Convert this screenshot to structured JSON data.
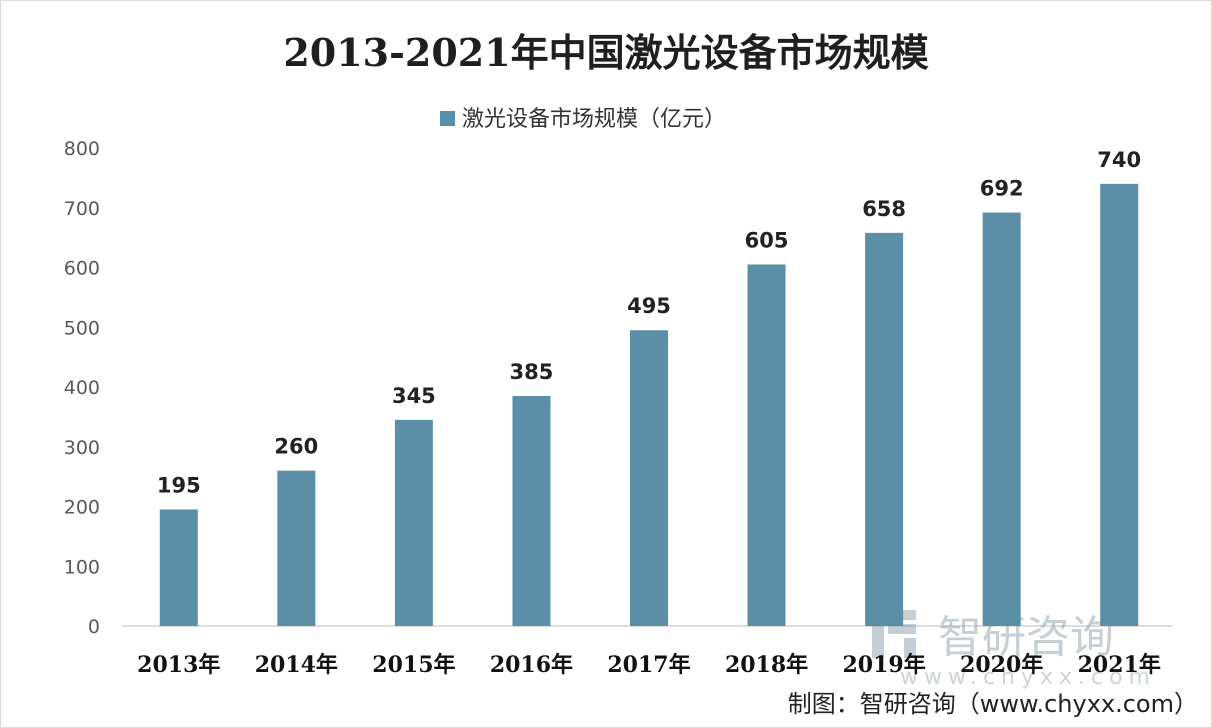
{
  "chart_data": {
    "type": "bar",
    "title": "2013-2021年中国激光设备市场规模",
    "categories": [
      "2013年",
      "2014年",
      "2015年",
      "2016年",
      "2017年",
      "2018年",
      "2019年",
      "2020年",
      "2021年"
    ],
    "series": [
      {
        "name": "激光设备市场规模（亿元）",
        "values": [
          195,
          260,
          345,
          385,
          495,
          605,
          658,
          692,
          740
        ]
      }
    ],
    "yticks": [
      "0",
      "100",
      "200",
      "300",
      "400",
      "500",
      "600",
      "700",
      "800"
    ],
    "ylim": [
      0,
      800
    ],
    "xlabel": "",
    "ylabel": "",
    "grid": false,
    "legend_position": "top",
    "bar_color": "#5b8fa8"
  },
  "watermark": {
    "text": "智研咨询",
    "url": "www.chyxx.com"
  },
  "credit": "制图：智研咨询（www.chyxx.com）"
}
